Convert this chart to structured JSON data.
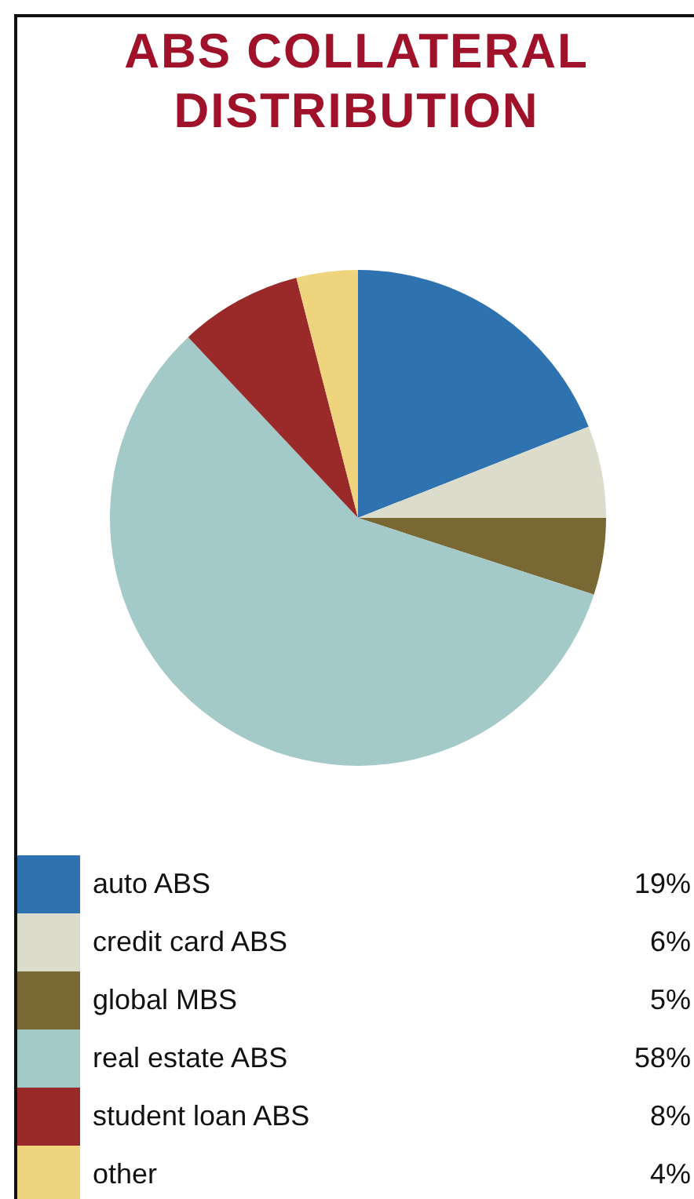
{
  "chart_data": {
    "type": "pie",
    "title": "ABS COLLATERAL DISTRIBUTION",
    "categories": [
      "auto ABS",
      "credit card ABS",
      "global MBS",
      "real estate ABS",
      "student loan ABS",
      "other"
    ],
    "values": [
      19,
      6,
      5,
      58,
      8,
      4
    ],
    "colors": [
      "#2e72b0",
      "#dcdccc",
      "#7a6834",
      "#a3c9c9",
      "#9a2a2a",
      "#efd47e"
    ],
    "data_labels": true,
    "value_labels": [
      "19%",
      "6%",
      "5%",
      "58%",
      "8%",
      "4%"
    ],
    "legend": "bottom"
  }
}
